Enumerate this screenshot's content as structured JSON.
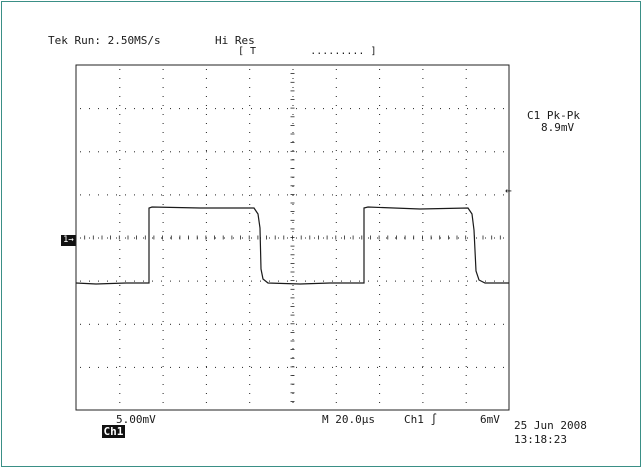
{
  "header": {
    "run_status": "Tek Run: 2.50MS/s",
    "acquisition_mode": "Hi Res",
    "trigger_bracket": "[ T         ......... ]"
  },
  "measurement": {
    "label": "C1 Pk-Pk",
    "value": "8.9mV"
  },
  "channel_marker": "1→",
  "trigger_level_marker": "←",
  "footer": {
    "channel_tag": "Ch1",
    "volts_per_div": "5.00mV",
    "time_per_div": "M 20.0µs",
    "trigger_source": "Ch1 ∫",
    "trigger_level": "6mV",
    "date": "25 Jun 2008",
    "time": "13:18:23"
  },
  "waveform": {
    "shape": "square-pulse",
    "colors": {
      "trace": "#1a1a1a",
      "grid": "#222222",
      "frame": "#3a8f86"
    }
  }
}
